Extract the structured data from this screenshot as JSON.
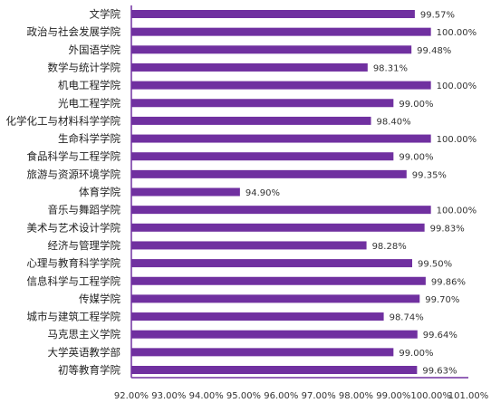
{
  "chart_data": {
    "type": "bar",
    "orientation": "horizontal",
    "title": "",
    "xlabel": "",
    "ylabel": "",
    "categories": [
      "文学院",
      "政治与社会发展学院",
      "外国语学院",
      "数学与统计学院",
      "机电工程学院",
      "光电工程学院",
      "化学化工与材料科学学院",
      "生命科学学院",
      "食品科学与工程学院",
      "旅游与资源环境学院",
      "体育学院",
      "音乐与舞蹈学院",
      "美术与艺术设计学院",
      "经济与管理学院",
      "心理与教育科学学院",
      "信息科学与工程学院",
      "传媒学院",
      "城市与建筑工程学院",
      "马克思主义学院",
      "大学英语教学部",
      "初等教育学院"
    ],
    "values": [
      99.57,
      100.0,
      99.48,
      98.31,
      100.0,
      99.0,
      98.4,
      100.0,
      99.0,
      99.35,
      94.9,
      100.0,
      99.83,
      98.28,
      99.5,
      99.86,
      99.7,
      98.74,
      99.64,
      99.0,
      99.63
    ],
    "data_labels": [
      "99.57%",
      "100.00%",
      "99.48%",
      "98.31%",
      "100.00%",
      "99.00%",
      "98.40%",
      "100.00%",
      "99.00%",
      "99.35%",
      "94.90%",
      "100.00%",
      "99.83%",
      "98.28%",
      "99.50%",
      "99.86%",
      "99.70%",
      "98.74%",
      "99.64%",
      "99.00%",
      "99.63%"
    ],
    "xlim": [
      92,
      101
    ],
    "xticks": [
      92,
      93,
      94,
      95,
      96,
      97,
      98,
      99,
      100,
      101
    ],
    "xtick_labels": [
      "92.00%",
      "93.00%",
      "94.00%",
      "95.00%",
      "96.00%",
      "97.00%",
      "98.00%",
      "99.00%",
      "100.00%",
      "101.00%"
    ],
    "grid": false,
    "legend": "none",
    "bar_color": "#7030a0"
  }
}
